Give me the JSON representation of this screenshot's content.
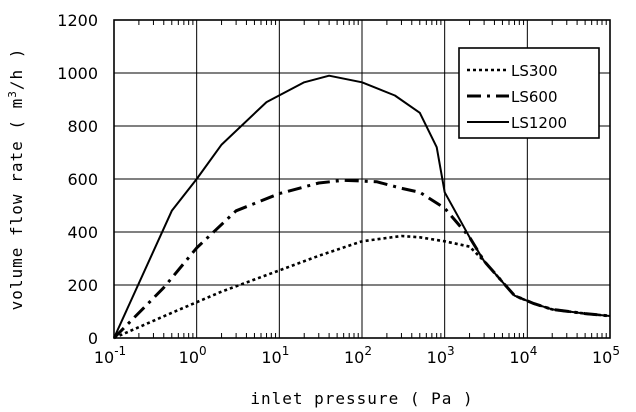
{
  "chart_data": {
    "type": "line",
    "title": "",
    "xlabel": "inlet pressure ( Pa )",
    "ylabel_prefix": "volume flow rate ( m",
    "ylabel_exponent": "3",
    "ylabel_suffix": "/h )",
    "x_scale": "log",
    "xlim": [
      0.1,
      100000
    ],
    "ylim": [
      0,
      1200
    ],
    "grid": true,
    "legend_position": "top-right",
    "x_tick_labels": [
      {
        "base": "10",
        "exp": "-1"
      },
      {
        "base": "10",
        "exp": "0"
      },
      {
        "base": "10",
        "exp": "1"
      },
      {
        "base": "10",
        "exp": "2"
      },
      {
        "base": "10",
        "exp": "3"
      },
      {
        "base": "10",
        "exp": "4"
      },
      {
        "base": "10",
        "exp": "5"
      }
    ],
    "y_ticks": [
      "0",
      "200",
      "400",
      "600",
      "800",
      "1000",
      "1200"
    ],
    "series": [
      {
        "name": "LS300",
        "dash": "dotted",
        "points": [
          [
            0.1,
            0
          ],
          [
            0.5,
            95
          ],
          [
            2,
            175
          ],
          [
            10,
            255
          ],
          [
            30,
            310
          ],
          [
            100,
            365
          ],
          [
            300,
            385
          ],
          [
            500,
            380
          ],
          [
            1000,
            365
          ],
          [
            2000,
            345
          ],
          [
            3000,
            290
          ],
          [
            7000,
            160
          ],
          [
            12000,
            130
          ],
          [
            20000,
            108
          ],
          [
            50000,
            92
          ],
          [
            100000,
            83
          ]
        ]
      },
      {
        "name": "LS600",
        "dash": "dash-dot",
        "points": [
          [
            0.1,
            0
          ],
          [
            0.4,
            190
          ],
          [
            1,
            340
          ],
          [
            3,
            480
          ],
          [
            10,
            545
          ],
          [
            30,
            585
          ],
          [
            60,
            595
          ],
          [
            150,
            590
          ],
          [
            300,
            565
          ],
          [
            500,
            550
          ],
          [
            1000,
            490
          ],
          [
            2000,
            380
          ],
          [
            3000,
            290
          ],
          [
            7000,
            160
          ],
          [
            12000,
            130
          ],
          [
            20000,
            108
          ],
          [
            50000,
            92
          ],
          [
            100000,
            83
          ]
        ]
      },
      {
        "name": "LS1200",
        "dash": "solid",
        "points": [
          [
            0.1,
            0
          ],
          [
            0.5,
            480
          ],
          [
            1,
            600
          ],
          [
            2,
            730
          ],
          [
            7,
            890
          ],
          [
            20,
            965
          ],
          [
            40,
            990
          ],
          [
            100,
            965
          ],
          [
            250,
            915
          ],
          [
            500,
            850
          ],
          [
            800,
            720
          ],
          [
            1000,
            550
          ],
          [
            2000,
            380
          ],
          [
            3000,
            290
          ],
          [
            7000,
            160
          ],
          [
            12000,
            130
          ],
          [
            20000,
            108
          ],
          [
            50000,
            92
          ],
          [
            100000,
            83
          ]
        ]
      }
    ]
  }
}
